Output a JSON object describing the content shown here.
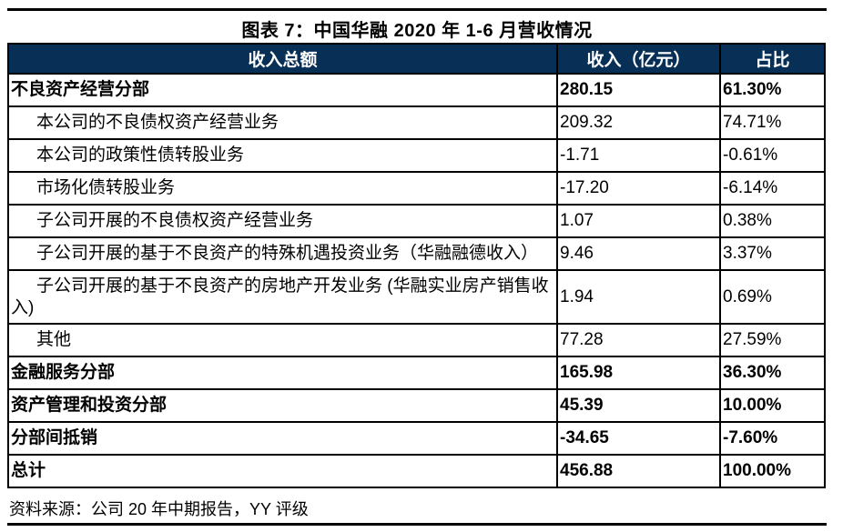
{
  "title": "图表 7：中国华融 2020 年 1-6 月营收情况",
  "table": {
    "headers": [
      "收入总额",
      "收入（亿元）",
      "占比"
    ],
    "rows": [
      {
        "label": "不良资产经营分部",
        "income": "280.15",
        "share": "61.30%",
        "bold": true,
        "indent": false
      },
      {
        "label": "本公司的不良债权资产经营业务",
        "income": "209.32",
        "share": "74.71%",
        "bold": false,
        "indent": true
      },
      {
        "label": "本公司的政策性债转股业务",
        "income": "-1.71",
        "share": "-0.61%",
        "bold": false,
        "indent": true
      },
      {
        "label": "市场化债转股业务",
        "income": "-17.20",
        "share": "-6.14%",
        "bold": false,
        "indent": true
      },
      {
        "label": "子公司开展的不良债权资产经营业务",
        "income": "1.07",
        "share": "0.38%",
        "bold": false,
        "indent": true
      },
      {
        "label": "子公司开展的基于不良资产的特殊机遇投资业务（华融融德收入）",
        "income": "9.46",
        "share": "3.37%",
        "bold": false,
        "indent": true
      },
      {
        "label": "子公司开展的基于不良资产的房地产开发业务 (华融实业房产销售收入)",
        "income": "1.94",
        "share": "0.69%",
        "bold": false,
        "indent": true
      },
      {
        "label": "其他",
        "income": "77.28",
        "share": "27.59%",
        "bold": false,
        "indent": true
      },
      {
        "label": "金融服务分部",
        "income": "165.98",
        "share": "36.30%",
        "bold": true,
        "indent": false
      },
      {
        "label": "资产管理和投资分部",
        "income": "45.39",
        "share": "10.00%",
        "bold": true,
        "indent": false
      },
      {
        "label": "分部间抵销",
        "income": "-34.65",
        "share": "-7.60%",
        "bold": true,
        "indent": false
      },
      {
        "label": "总计",
        "income": "456.88",
        "share": "100.00%",
        "bold": true,
        "indent": false
      }
    ]
  },
  "source": "资料来源：公司 20 年中期报告，YY 评级",
  "colors": {
    "header_bg": "#083056",
    "header_text": "#ffffff",
    "border": "#000000",
    "text": "#000000",
    "background": "#ffffff"
  }
}
